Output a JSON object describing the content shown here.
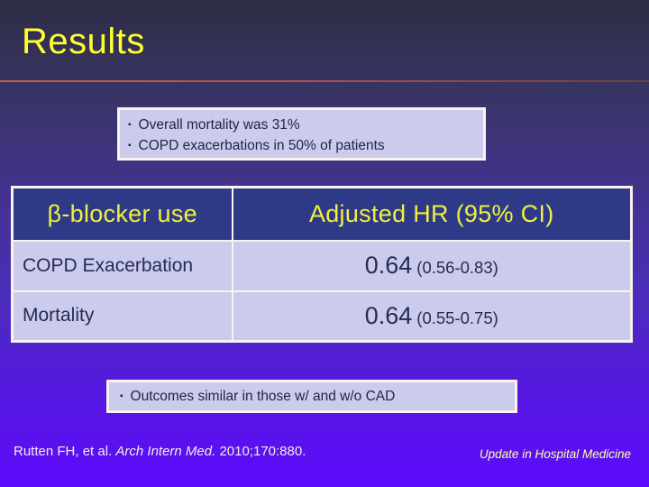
{
  "slide": {
    "title": "Results",
    "bullet_marker": "▪",
    "callout_top": {
      "bullets": [
        "Overall mortality was 31%",
        "COPD exacerbations in 50% of patients"
      ]
    },
    "table": {
      "headers": [
        "β-blocker use",
        "Adjusted HR (95% CI)"
      ],
      "rows": [
        {
          "label": "COPD Exacerbation",
          "value": "0.64",
          "ci": "(0.56-0.83)"
        },
        {
          "label": "Mortality",
          "value": "0.64",
          "ci": "(0.55-0.75)"
        }
      ]
    },
    "callout_bottom": {
      "bullets": [
        "Outcomes similar in those w/ and w/o CAD"
      ]
    },
    "footer": {
      "citation_prefix": "Rutten FH, et al. ",
      "citation_journal": "Arch Intern Med.",
      "citation_suffix": " 2010;170:880.",
      "series": "Update in Hospital Medicine"
    },
    "colors": {
      "title_yellow": "#ffff33",
      "header_blue": "#2e3a88",
      "callout_lavender": "#cbcbed",
      "body_text_navy": "#262b52",
      "rule_red": "#b0524c",
      "background_top": "#2d2d45",
      "background_bottom": "#5d0bfc"
    }
  }
}
